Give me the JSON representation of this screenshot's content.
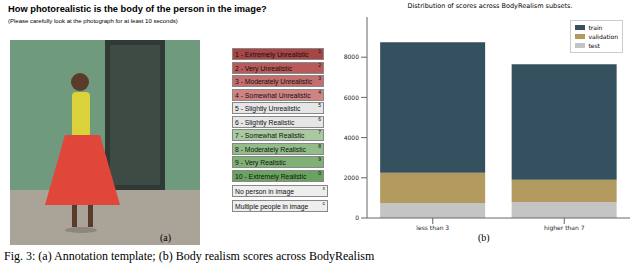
{
  "annotation_template": {
    "title": "How photorealistic is the body of the person in the image?",
    "instruction": "(Please carefully look at the photograph for at least 10 seconds)",
    "options": [
      {
        "label": "1 - Extremely Unrealistic",
        "key": "1"
      },
      {
        "label": "2 - Very Unrealistic",
        "key": "2"
      },
      {
        "label": "3 - Moderately Unrealistic",
        "key": "3"
      },
      {
        "label": "4 - Somewhat Unrealistic",
        "key": "4"
      },
      {
        "label": "5 - Slightly Unrealistic",
        "key": "5"
      },
      {
        "label": "6 - Slightly Realistic",
        "key": "6"
      },
      {
        "label": "7 - Somewhat Realistic",
        "key": "7"
      },
      {
        "label": "8 - Moderately Realistic",
        "key": "8"
      },
      {
        "label": "9 - Very Realistic",
        "key": "9"
      },
      {
        "label": "10 - Extremely Realistic",
        "key": "0"
      }
    ],
    "extra_options": [
      {
        "label": "No person in image",
        "key": "x"
      },
      {
        "label": "Multiple people in image",
        "key": "c"
      }
    ]
  },
  "panel_labels": [
    "(a)",
    "(b)"
  ],
  "caption": "Fig. 3: (a) Annotation template; (b) Body realism scores across BodyRealism",
  "chart_data": {
    "type": "bar",
    "title": "Distribution of scores across BodyRealism subsets.",
    "stacked": true,
    "legend": "upper right",
    "categories": [
      "less than 3",
      "higher than 7"
    ],
    "series": [
      {
        "name": "train",
        "color": "#35505e",
        "values": [
          6500,
          5750
        ]
      },
      {
        "name": "validation",
        "color": "#b39a5e",
        "values": [
          1500,
          1100
        ]
      },
      {
        "name": "test",
        "color": "#c4c4c4",
        "values": [
          750,
          800
        ]
      }
    ],
    "ylim": [
      0,
      10000
    ],
    "yticks": [
      0,
      2000,
      4000,
      6000,
      8000
    ]
  }
}
